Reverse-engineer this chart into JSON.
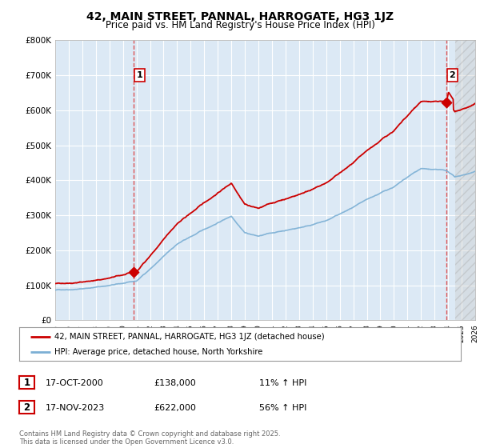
{
  "title": "42, MAIN STREET, PANNAL, HARROGATE, HG3 1JZ",
  "subtitle": "Price paid vs. HM Land Registry's House Price Index (HPI)",
  "background_color": "#ffffff",
  "plot_bg_color": "#dce9f5",
  "grid_color": "#ffffff",
  "red_color": "#cc0000",
  "blue_color": "#7bafd4",
  "dashed_red": "#dd4444",
  "sale1_date": "17-OCT-2000",
  "sale1_price": 138000,
  "sale1_hpi": "11% ↑ HPI",
  "sale2_date": "17-NOV-2023",
  "sale2_price": 622000,
  "sale2_hpi": "56% ↑ HPI",
  "legend_label1": "42, MAIN STREET, PANNAL, HARROGATE, HG3 1JZ (detached house)",
  "legend_label2": "HPI: Average price, detached house, North Yorkshire",
  "footer": "Contains HM Land Registry data © Crown copyright and database right 2025.\nThis data is licensed under the Open Government Licence v3.0.",
  "ylim": [
    0,
    800000
  ],
  "yticks": [
    0,
    100000,
    200000,
    300000,
    400000,
    500000,
    600000,
    700000,
    800000
  ],
  "ytick_labels": [
    "£0",
    "£100K",
    "£200K",
    "£300K",
    "£400K",
    "£500K",
    "£600K",
    "£700K",
    "£800K"
  ],
  "sale1_x": 2000.79,
  "sale2_x": 2023.88,
  "xmin": 1995,
  "xmax": 2026
}
